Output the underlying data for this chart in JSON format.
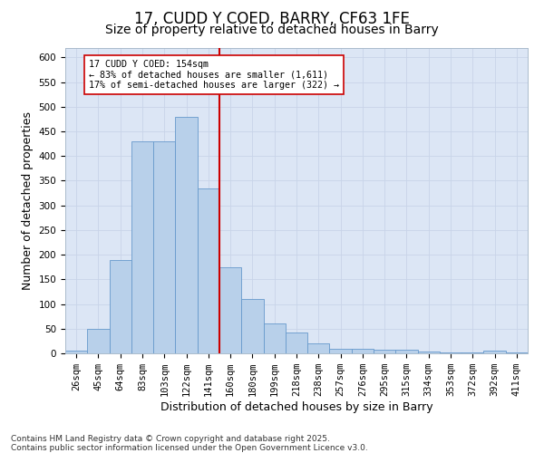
{
  "title": "17, CUDD Y COED, BARRY, CF63 1FE",
  "subtitle": "Size of property relative to detached houses in Barry",
  "xlabel": "Distribution of detached houses by size in Barry",
  "ylabel": "Number of detached properties",
  "categories": [
    "26sqm",
    "45sqm",
    "64sqm",
    "83sqm",
    "103sqm",
    "122sqm",
    "141sqm",
    "160sqm",
    "180sqm",
    "199sqm",
    "218sqm",
    "238sqm",
    "257sqm",
    "276sqm",
    "295sqm",
    "315sqm",
    "334sqm",
    "353sqm",
    "372sqm",
    "392sqm",
    "411sqm"
  ],
  "values": [
    5,
    50,
    190,
    430,
    430,
    480,
    335,
    175,
    110,
    60,
    42,
    20,
    10,
    10,
    8,
    8,
    3,
    2,
    2,
    5,
    2
  ],
  "bar_color": "#b8d0ea",
  "bar_edge_color": "#6699cc",
  "grid_color": "#c8d4e8",
  "background_color": "#dce6f5",
  "vline_color": "#cc0000",
  "annotation_text": "17 CUDD Y COED: 154sqm\n← 83% of detached houses are smaller (1,611)\n17% of semi-detached houses are larger (322) →",
  "annotation_box_color": "#ffffff",
  "annotation_box_edge": "#cc0000",
  "ylim": [
    0,
    620
  ],
  "yticks": [
    0,
    50,
    100,
    150,
    200,
    250,
    300,
    350,
    400,
    450,
    500,
    550,
    600
  ],
  "footer": "Contains HM Land Registry data © Crown copyright and database right 2025.\nContains public sector information licensed under the Open Government Licence v3.0.",
  "title_fontsize": 12,
  "subtitle_fontsize": 10,
  "tick_fontsize": 7.5,
  "label_fontsize": 9,
  "footer_fontsize": 6.5
}
